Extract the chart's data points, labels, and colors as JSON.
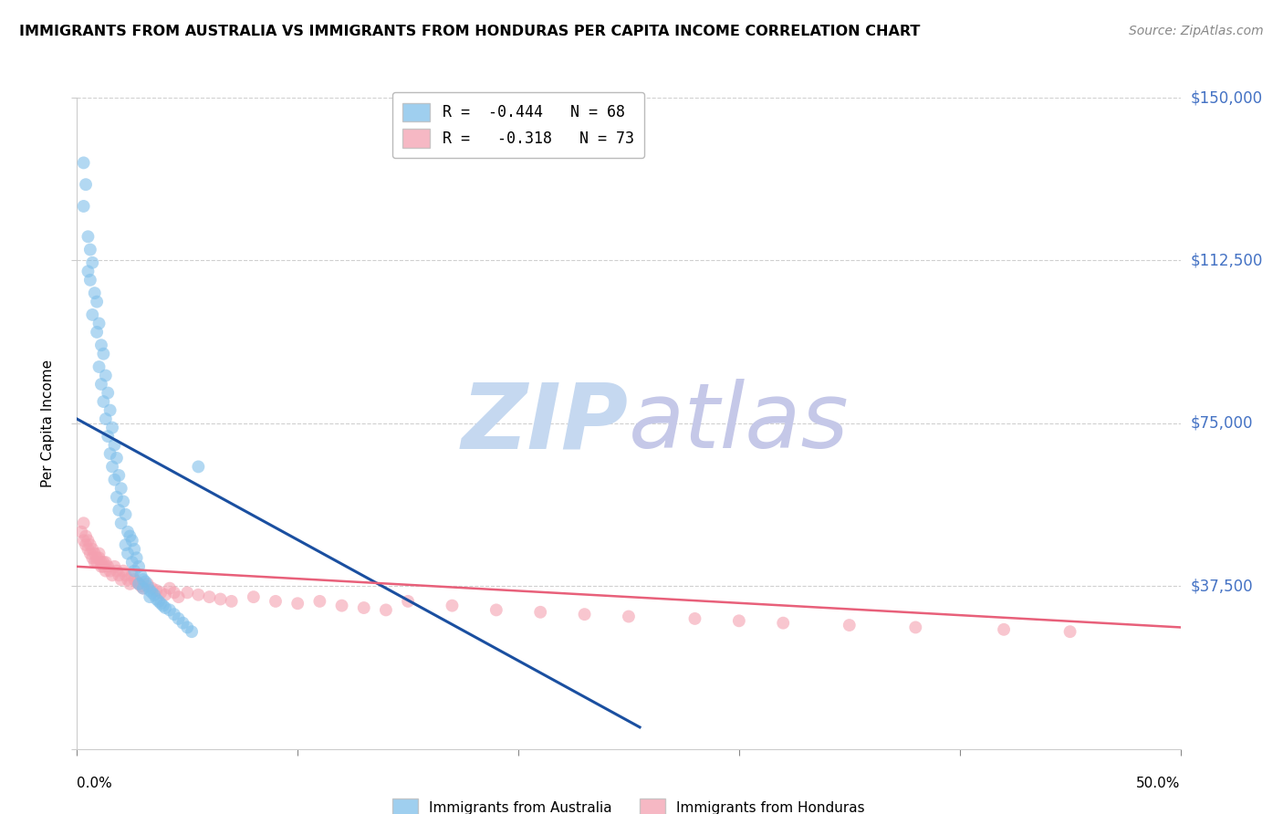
{
  "title": "IMMIGRANTS FROM AUSTRALIA VS IMMIGRANTS FROM HONDURAS PER CAPITA INCOME CORRELATION CHART",
  "source": "Source: ZipAtlas.com",
  "ylabel": "Per Capita Income",
  "yticks": [
    0,
    37500,
    75000,
    112500,
    150000
  ],
  "xlim": [
    0.0,
    0.5
  ],
  "ylim": [
    0,
    150000
  ],
  "legend_australia": "R =  -0.444   N = 68",
  "legend_honduras": "R =   -0.318   N = 73",
  "legend_label_australia": "Immigrants from Australia",
  "legend_label_honduras": "Immigrants from Honduras",
  "color_australia": "#7fbfea",
  "color_honduras": "#f4a0b0",
  "line_color_australia": "#1a4fa0",
  "line_color_honduras": "#e8607a",
  "watermark_zip": "ZIP",
  "watermark_atlas": "atlas",
  "watermark_color_zip": "#c5d8f0",
  "watermark_color_atlas": "#c5c8e8",
  "title_fontsize": 11.5,
  "source_fontsize": 10,
  "scatter_alpha": 0.6,
  "scatter_size": 100,
  "australia_x": [
    0.003,
    0.004,
    0.003,
    0.005,
    0.006,
    0.007,
    0.005,
    0.006,
    0.008,
    0.009,
    0.007,
    0.01,
    0.009,
    0.011,
    0.012,
    0.01,
    0.013,
    0.011,
    0.014,
    0.012,
    0.015,
    0.013,
    0.016,
    0.014,
    0.017,
    0.015,
    0.018,
    0.016,
    0.019,
    0.017,
    0.02,
    0.018,
    0.021,
    0.019,
    0.022,
    0.02,
    0.023,
    0.024,
    0.025,
    0.022,
    0.026,
    0.023,
    0.027,
    0.025,
    0.028,
    0.026,
    0.029,
    0.03,
    0.031,
    0.028,
    0.032,
    0.03,
    0.033,
    0.034,
    0.035,
    0.033,
    0.036,
    0.037,
    0.038,
    0.039,
    0.04,
    0.042,
    0.044,
    0.046,
    0.048,
    0.05,
    0.052,
    0.055
  ],
  "australia_y": [
    135000,
    130000,
    125000,
    118000,
    115000,
    112000,
    110000,
    108000,
    105000,
    103000,
    100000,
    98000,
    96000,
    93000,
    91000,
    88000,
    86000,
    84000,
    82000,
    80000,
    78000,
    76000,
    74000,
    72000,
    70000,
    68000,
    67000,
    65000,
    63000,
    62000,
    60000,
    58000,
    57000,
    55000,
    54000,
    52000,
    50000,
    49000,
    48000,
    47000,
    46000,
    45000,
    44000,
    43000,
    42000,
    41000,
    40000,
    39000,
    38500,
    38000,
    37500,
    37000,
    36500,
    36000,
    35500,
    35000,
    34500,
    34000,
    33500,
    33000,
    32500,
    32000,
    31000,
    30000,
    29000,
    28000,
    27000,
    65000
  ],
  "honduras_x": [
    0.002,
    0.003,
    0.003,
    0.004,
    0.004,
    0.005,
    0.005,
    0.006,
    0.006,
    0.007,
    0.007,
    0.008,
    0.008,
    0.009,
    0.009,
    0.01,
    0.01,
    0.011,
    0.011,
    0.012,
    0.012,
    0.013,
    0.013,
    0.014,
    0.015,
    0.016,
    0.017,
    0.018,
    0.019,
    0.02,
    0.021,
    0.022,
    0.023,
    0.024,
    0.025,
    0.026,
    0.027,
    0.028,
    0.029,
    0.03,
    0.032,
    0.034,
    0.036,
    0.038,
    0.04,
    0.042,
    0.044,
    0.046,
    0.05,
    0.055,
    0.06,
    0.065,
    0.07,
    0.08,
    0.09,
    0.1,
    0.11,
    0.12,
    0.13,
    0.14,
    0.15,
    0.17,
    0.19,
    0.21,
    0.23,
    0.25,
    0.28,
    0.3,
    0.32,
    0.35,
    0.38,
    0.42,
    0.45
  ],
  "honduras_y": [
    50000,
    48000,
    52000,
    49000,
    47000,
    48000,
    46000,
    47000,
    45000,
    46000,
    44000,
    45000,
    43000,
    44000,
    43000,
    45000,
    44000,
    43000,
    42000,
    43000,
    42000,
    41000,
    43000,
    42000,
    41000,
    40000,
    42000,
    41000,
    40000,
    39000,
    41000,
    40000,
    39000,
    38000,
    40000,
    39000,
    38500,
    38000,
    37500,
    37000,
    38000,
    37000,
    36500,
    36000,
    35500,
    37000,
    36000,
    35000,
    36000,
    35500,
    35000,
    34500,
    34000,
    35000,
    34000,
    33500,
    34000,
    33000,
    32500,
    32000,
    34000,
    33000,
    32000,
    31500,
    31000,
    30500,
    30000,
    29500,
    29000,
    28500,
    28000,
    27500,
    27000
  ],
  "aus_line_x": [
    0.0,
    0.255
  ],
  "aus_line_y": [
    76000,
    5000
  ],
  "hon_line_x": [
    0.0,
    0.5
  ],
  "hon_line_y": [
    42000,
    28000
  ],
  "grid_color": "#d0d0d0",
  "right_label_color": "#4472C4"
}
